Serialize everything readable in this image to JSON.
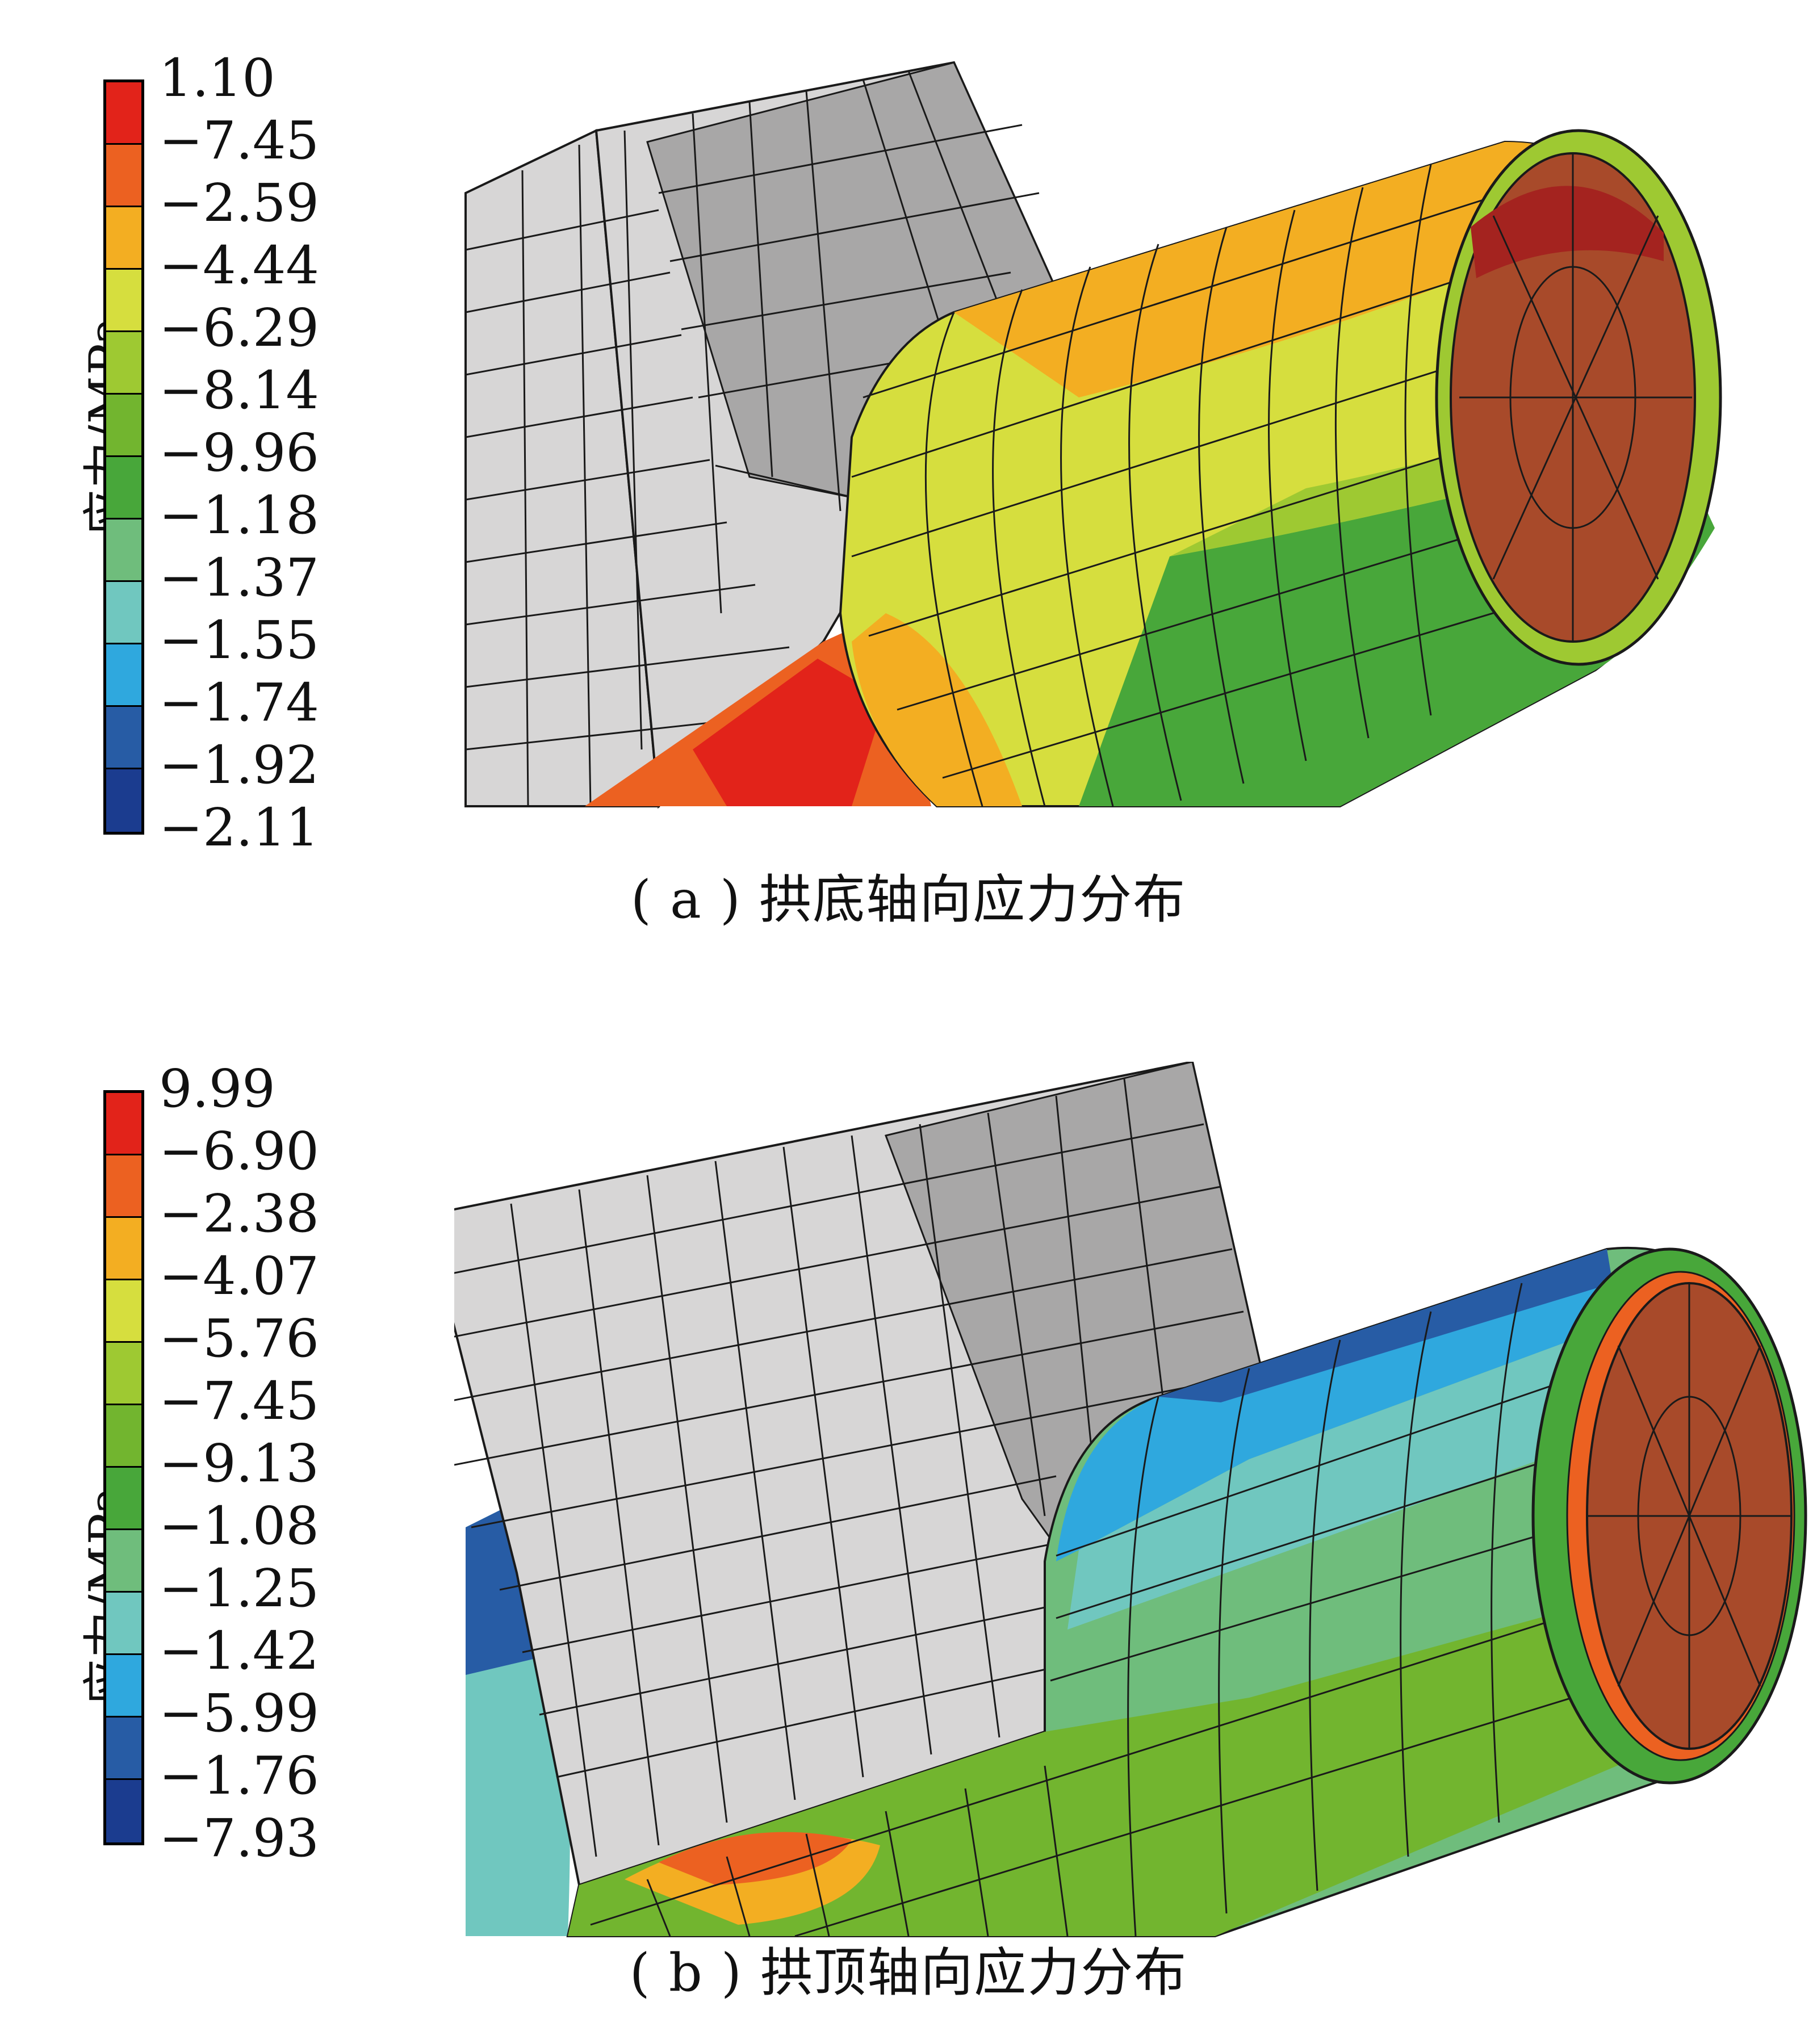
{
  "colors": {
    "scale": [
      "#e2231a",
      "#ec6121",
      "#f3ae22",
      "#d6de3e",
      "#9ec932",
      "#72b52f",
      "#48a73a",
      "#6fbd7c",
      "#70c7bf",
      "#2fa8de",
      "#275ca5",
      "#1b3c8f"
    ],
    "grid_wall_light": "#d7d6d6",
    "grid_wall_dark": "#a8a7a7",
    "mesh_line": "#1a1a1a",
    "core": "#a84a2a"
  },
  "panel_a": {
    "legend_title": "应力/MPa",
    "legend_values": [
      "1.10",
      "−7.45",
      "−2.59",
      "−4.44",
      "−6.29",
      "−8.14",
      "−9.96",
      "−1.18",
      "−1.37",
      "−1.55",
      "−1.74",
      "−1.92",
      "−2.11"
    ],
    "caption": "( a ) 拱底轴向应力分布"
  },
  "panel_b": {
    "legend_title": "应力/MPa",
    "legend_values": [
      "9.99",
      "−6.90",
      "−2.38",
      "−4.07",
      "−5.76",
      "−7.45",
      "−9.13",
      "−1.08",
      "−1.25",
      "−1.42",
      "−5.99",
      "−1.76",
      "−7.93"
    ],
    "caption": "( b ) 拱顶轴向应力分布"
  }
}
